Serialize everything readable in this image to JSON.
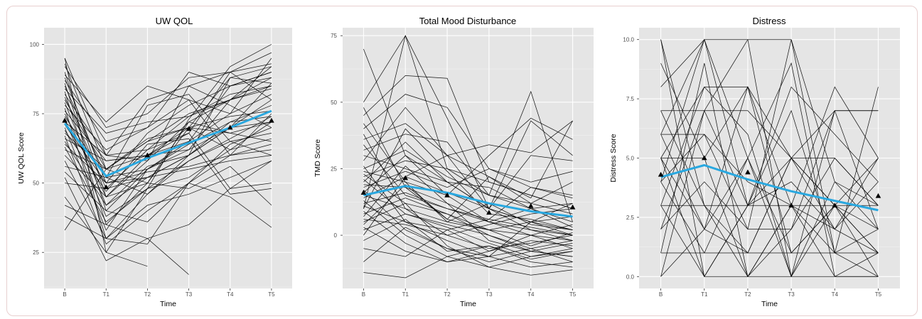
{
  "chart_data": [
    {
      "type": "line",
      "title": "UW QOL",
      "xlabel": "Time",
      "ylabel": "UW QOL Score",
      "categories": [
        "B",
        "T1",
        "T2",
        "T3",
        "T4",
        "T5"
      ],
      "ylim": [
        12,
        106
      ],
      "yticks": [
        25,
        50,
        75,
        100
      ],
      "ytick_labels": [
        "25",
        "50",
        "75",
        "100"
      ],
      "grid": true,
      "panel_color": "#e5e5e5",
      "line_color": "#000000",
      "mean_color": "#29a8e0",
      "mean": [
        71.5,
        52.5,
        59,
        64.5,
        70,
        76
      ],
      "mean_markers": [
        72.5,
        48.5,
        60,
        69.5,
        70,
        72.5
      ],
      "series": [
        {
          "values": [
            95,
            60,
            80,
            85,
            90,
            97
          ]
        },
        {
          "values": [
            93,
            55,
            65,
            75,
            80,
            85
          ]
        },
        {
          "values": [
            92,
            70,
            75,
            88,
            90,
            93
          ]
        },
        {
          "values": [
            90,
            45,
            60,
            70,
            88,
            92
          ]
        },
        {
          "values": [
            89,
            72,
            85,
            80,
            60,
            75
          ]
        },
        {
          "values": [
            88,
            50,
            68,
            78,
            85,
            90
          ]
        },
        {
          "values": [
            87,
            65,
            70,
            90,
            85,
            88
          ]
        },
        {
          "values": [
            86,
            40,
            55,
            65,
            75,
            95
          ]
        },
        {
          "values": [
            85,
            52,
            78,
            82,
            65,
            60
          ]
        },
        {
          "values": [
            84,
            68,
            72,
            74,
            82,
            85
          ]
        },
        {
          "values": [
            83,
            35,
            50,
            72,
            80,
            88
          ]
        },
        {
          "values": [
            82,
            60,
            58,
            85,
            78,
            70
          ]
        },
        {
          "values": [
            81,
            48,
            62,
            68,
            90,
            80
          ]
        },
        {
          "values": [
            80,
            55,
            66,
            70,
            62,
            72
          ]
        },
        {
          "values": [
            79,
            42,
            52,
            60,
            72,
            78
          ]
        },
        {
          "values": [
            78,
            62,
            70,
            80,
            75,
            82
          ]
        },
        {
          "values": [
            77,
            30,
            46,
            60,
            70,
            86
          ]
        },
        {
          "values": [
            76,
            58,
            60,
            65,
            85,
            90
          ]
        },
        {
          "values": [
            75,
            45,
            58,
            72,
            68,
            65
          ]
        },
        {
          "values": [
            74,
            52,
            55,
            64,
            72,
            74
          ]
        },
        {
          "values": [
            73,
            38,
            48,
            58,
            65,
            68
          ]
        },
        {
          "values": [
            72,
            60,
            62,
            74,
            80,
            92
          ]
        },
        {
          "values": [
            71,
            50,
            54,
            56,
            60,
            62
          ]
        },
        {
          "values": [
            70,
            33,
            55,
            62,
            80,
            84
          ]
        },
        {
          "values": [
            69,
            47,
            64,
            66,
            46,
            48
          ]
        },
        {
          "values": [
            68,
            55,
            50,
            70,
            74,
            76
          ]
        },
        {
          "values": [
            67,
            28,
            40,
            50,
            60,
            64
          ]
        },
        {
          "values": [
            66,
            58,
            60,
            62,
            70,
            72
          ]
        },
        {
          "values": [
            65,
            42,
            56,
            60,
            88,
            86
          ]
        },
        {
          "values": [
            64,
            50,
            52,
            55,
            58,
            60
          ]
        },
        {
          "values": [
            63,
            36,
            48,
            52,
            62,
            66
          ]
        },
        {
          "values": [
            62,
            55,
            60,
            68,
            48,
            58
          ]
        },
        {
          "values": [
            60,
            45,
            50,
            48,
            56,
            42
          ]
        },
        {
          "values": [
            58,
            30,
            42,
            46,
            52,
            58
          ]
        },
        {
          "values": [
            56,
            52,
            46,
            58,
            66,
            74
          ]
        },
        {
          "values": [
            54,
            40,
            36,
            50,
            64,
            70
          ]
        },
        {
          "values": [
            52,
            22,
            30,
            35,
            48,
            50
          ]
        },
        {
          "values": [
            50,
            48,
            52,
            60,
            70,
            80
          ]
        },
        {
          "values": [
            45,
            25,
            20,
            null,
            null,
            null
          ]
        },
        {
          "values": [
            42,
            35,
            30,
            17,
            null,
            null
          ]
        },
        {
          "values": [
            38,
            30,
            28,
            50,
            45,
            34
          ]
        },
        {
          "values": [
            33,
            55,
            65,
            70,
            68,
            72
          ]
        },
        {
          "values": [
            95,
            25,
            48,
            73,
            92,
            100
          ]
        }
      ]
    },
    {
      "type": "line",
      "title": "Total Mood Disturbance",
      "xlabel": "Time",
      "ylabel": "TMD Score",
      "categories": [
        "B",
        "T1",
        "T2",
        "T3",
        "T4",
        "T5"
      ],
      "ylim": [
        -20,
        78
      ],
      "yticks": [
        0,
        25,
        50,
        75
      ],
      "ytick_labels": [
        "0",
        "25",
        "50",
        "75"
      ],
      "grid": true,
      "panel_color": "#e5e5e5",
      "line_color": "#000000",
      "mean_color": "#29a8e0",
      "mean": [
        15,
        18.5,
        16,
        12,
        9,
        7
      ],
      "mean_markers": [
        16,
        21.5,
        15,
        8.5,
        11,
        10.5
      ],
      "series": [
        {
          "values": [
            70,
            30,
            20,
            10,
            5,
            2
          ]
        },
        {
          "values": [
            50,
            75,
            25,
            15,
            10,
            5
          ]
        },
        {
          "values": [
            45,
            60,
            59,
            20,
            15,
            10
          ]
        },
        {
          "values": [
            42,
            20,
            5,
            2,
            0,
            -2
          ]
        },
        {
          "values": [
            40,
            53,
            48,
            25,
            18,
            15
          ]
        },
        {
          "values": [
            38,
            10,
            0,
            -5,
            -3,
            0
          ]
        },
        {
          "values": [
            36,
            42,
            30,
            34,
            31,
            43
          ]
        },
        {
          "values": [
            34,
            15,
            10,
            5,
            0,
            -5
          ]
        },
        {
          "values": [
            32,
            38,
            35,
            15,
            54,
            5
          ]
        },
        {
          "values": [
            30,
            25,
            20,
            18,
            10,
            12
          ]
        },
        {
          "values": [
            28,
            48,
            30,
            10,
            5,
            0
          ]
        },
        {
          "values": [
            26,
            5,
            -2,
            -8,
            -5,
            -10
          ]
        },
        {
          "values": [
            25,
            32,
            22,
            15,
            12,
            20
          ]
        },
        {
          "values": [
            24,
            20,
            15,
            30,
            44,
            36
          ]
        },
        {
          "values": [
            23,
            12,
            8,
            0,
            -5,
            -2
          ]
        },
        {
          "values": [
            22,
            28,
            25,
            20,
            15,
            10
          ]
        },
        {
          "values": [
            21,
            8,
            3,
            -3,
            -8,
            -5
          ]
        },
        {
          "values": [
            20,
            35,
            20,
            10,
            30,
            28
          ]
        },
        {
          "values": [
            19,
            18,
            12,
            5,
            2,
            0
          ]
        },
        {
          "values": [
            18,
            24,
            18,
            25,
            20,
            24
          ]
        },
        {
          "values": [
            17,
            2,
            -5,
            -10,
            -6,
            -8
          ]
        },
        {
          "values": [
            16,
            30,
            15,
            5,
            10,
            3
          ]
        },
        {
          "values": [
            15,
            10,
            5,
            12,
            4,
            2
          ]
        },
        {
          "values": [
            14,
            22,
            30,
            22,
            12,
            8
          ]
        },
        {
          "values": [
            13,
            0,
            -8,
            -4,
            -10,
            -12
          ]
        },
        {
          "values": [
            12,
            16,
            10,
            6,
            18,
            14
          ]
        },
        {
          "values": [
            11,
            5,
            2,
            -6,
            0,
            4
          ]
        },
        {
          "values": [
            10,
            40,
            24,
            8,
            6,
            2
          ]
        },
        {
          "values": [
            9,
            -3,
            -10,
            -6,
            -2,
            -4
          ]
        },
        {
          "values": [
            8,
            14,
            8,
            2,
            5,
            7
          ]
        },
        {
          "values": [
            7,
            26,
            12,
            -2,
            -6,
            -3
          ]
        },
        {
          "values": [
            6,
            4,
            0,
            4,
            8,
            10
          ]
        },
        {
          "values": [
            5,
            12,
            -4,
            -12,
            -8,
            -6
          ]
        },
        {
          "values": [
            4,
            19,
            6,
            2,
            -4,
            1
          ]
        },
        {
          "values": [
            3,
            -6,
            -10,
            -8,
            5,
            12
          ]
        },
        {
          "values": [
            2,
            8,
            4,
            0,
            -6,
            -8
          ]
        },
        {
          "values": [
            0,
            22,
            16,
            10,
            2,
            -2
          ]
        },
        {
          "values": [
            -2,
            6,
            -6,
            -4,
            -9,
            -6
          ]
        },
        {
          "values": [
            -5,
            -8,
            2,
            6,
            3,
            0
          ]
        },
        {
          "values": [
            -10,
            3,
            -5,
            -8,
            -12,
            -10
          ]
        },
        {
          "values": [
            -14,
            -16,
            -8,
            -12,
            -15,
            -13
          ]
        },
        {
          "values": [
            48,
            18,
            6,
            22,
            14,
            43
          ]
        },
        {
          "values": [
            10,
            75,
            44,
            10,
            43,
            30
          ]
        }
      ]
    },
    {
      "type": "line",
      "title": "Distress",
      "xlabel": "Time",
      "ylabel": "Distress Score",
      "categories": [
        "B",
        "T1",
        "T2",
        "T3",
        "T4",
        "T5"
      ],
      "ylim": [
        -0.5,
        10.5
      ],
      "yticks": [
        0,
        2.5,
        5,
        7.5,
        10
      ],
      "ytick_labels": [
        "0.0",
        "2.5",
        "5.0",
        "7.5",
        "10.0"
      ],
      "grid": true,
      "panel_color": "#e5e5e5",
      "line_color": "#000000",
      "mean_color": "#29a8e0",
      "mean": [
        4.2,
        4.7,
        4.1,
        3.6,
        3.2,
        2.8
      ],
      "mean_markers": [
        4.3,
        5.0,
        4.4,
        3.0,
        3.0,
        3.4
      ],
      "series": [
        {
          "values": [
            10,
            0,
            3,
            7,
            1,
            2
          ]
        },
        {
          "values": [
            9,
            5,
            8,
            3,
            1,
            0
          ]
        },
        {
          "values": [
            8,
            10,
            5,
            0,
            3,
            5
          ]
        },
        {
          "values": [
            7,
            7,
            10,
            10,
            4,
            3
          ]
        },
        {
          "values": [
            7,
            3,
            1,
            5,
            5,
            3
          ]
        },
        {
          "values": [
            6,
            10,
            10,
            0,
            7,
            7
          ]
        },
        {
          "values": [
            6,
            2,
            5,
            9,
            0,
            1
          ]
        },
        {
          "values": [
            5,
            8,
            8,
            5,
            3,
            0
          ]
        },
        {
          "values": [
            5,
            0,
            3,
            8,
            6,
            4
          ]
        },
        {
          "values": [
            5,
            5,
            0,
            3,
            3,
            3
          ]
        },
        {
          "values": [
            4,
            10,
            3,
            5,
            7,
            2
          ]
        },
        {
          "values": [
            4,
            1,
            1,
            1,
            1,
            1
          ]
        },
        {
          "values": [
            4,
            6,
            4,
            3,
            2,
            5
          ]
        },
        {
          "values": [
            3,
            8,
            6,
            0,
            4,
            2
          ]
        },
        {
          "values": [
            3,
            3,
            0,
            3,
            8,
            5
          ]
        },
        {
          "values": [
            3,
            0,
            0,
            0,
            0,
            0
          ]
        },
        {
          "values": [
            2,
            7,
            7,
            5,
            3,
            1
          ]
        },
        {
          "values": [
            2,
            4,
            2,
            10,
            1,
            8
          ]
        },
        {
          "values": [
            1,
            9,
            0,
            2,
            5,
            3
          ]
        },
        {
          "values": [
            1,
            1,
            5,
            1,
            3,
            2
          ]
        },
        {
          "values": [
            0,
            7,
            3,
            3,
            0,
            0
          ]
        },
        {
          "values": [
            0,
            2,
            1,
            5,
            2,
            1
          ]
        },
        {
          "values": [
            6,
            6,
            2,
            2,
            7,
            7
          ]
        },
        {
          "values": [
            10,
            3,
            3,
            4,
            2,
            4
          ]
        },
        {
          "values": [
            5,
            2,
            8,
            1,
            3,
            1
          ]
        }
      ]
    }
  ]
}
